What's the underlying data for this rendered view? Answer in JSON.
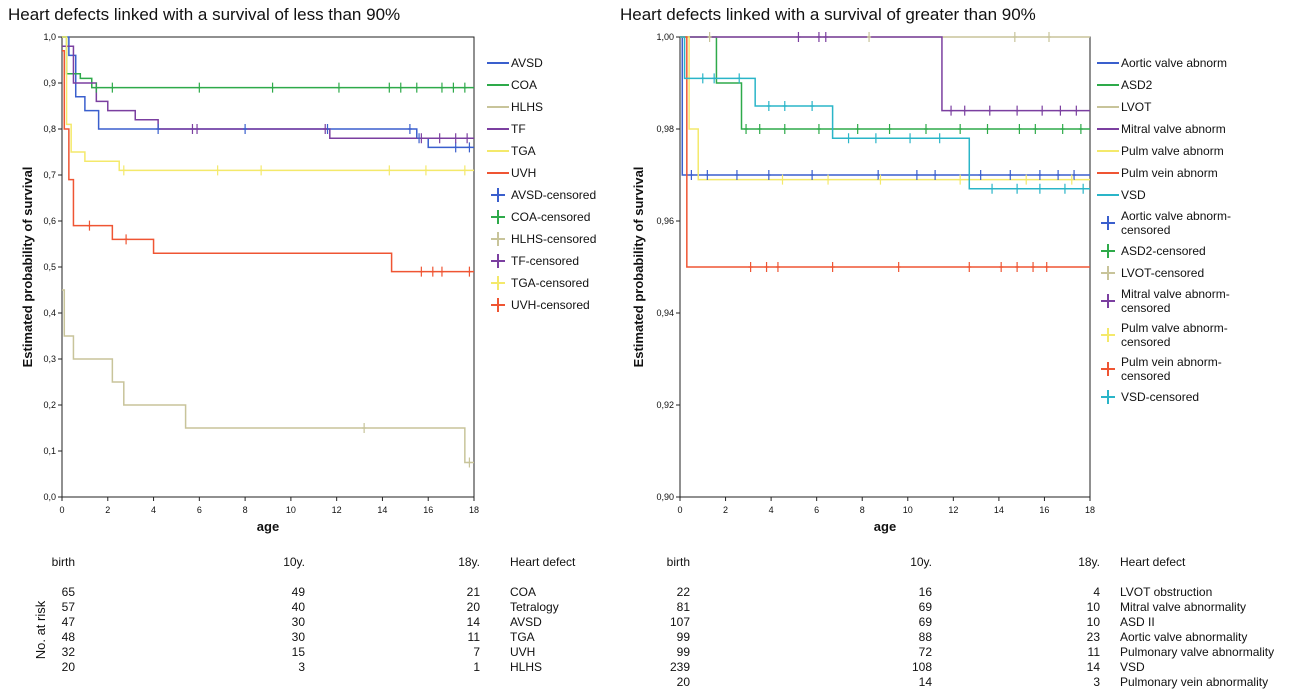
{
  "chart_data": [
    {
      "type": "line",
      "title": "Heart defects linked with a survival of less than 90%",
      "xlabel": "age",
      "ylabel": "Estimated probability of survival",
      "xlim": [
        0,
        18
      ],
      "xticks": [
        0,
        2,
        4,
        6,
        8,
        10,
        12,
        14,
        16,
        18
      ],
      "ylim": [
        0,
        1
      ],
      "yticks": [
        {
          "value": 0,
          "label": "0,0"
        },
        {
          "value": 0.1,
          "label": "0,1"
        },
        {
          "value": 0.2,
          "label": "0,2"
        },
        {
          "value": 0.3,
          "label": "0,3"
        },
        {
          "value": 0.4,
          "label": "0,4"
        },
        {
          "value": 0.5,
          "label": "0,5"
        },
        {
          "value": 0.6,
          "label": "0,6"
        },
        {
          "value": 0.7,
          "label": "0,7"
        },
        {
          "value": 0.8,
          "label": "0,8"
        },
        {
          "value": 0.9,
          "label": "0,9"
        },
        {
          "value": 1,
          "label": "1,0"
        }
      ],
      "series": [
        {
          "name": "AVSD",
          "color": "#3a5fcd",
          "drawstyle": "steps-post",
          "x": [
            0,
            0.3,
            0.6,
            1,
            1.6,
            15.5,
            16,
            18
          ],
          "values": [
            1,
            0.96,
            0.87,
            0.84,
            0.8,
            0.78,
            0.76,
            0.76
          ]
        },
        {
          "name": "COA",
          "color": "#2eaa4a",
          "drawstyle": "steps-post",
          "x": [
            0,
            0.2,
            0.8,
            1.3,
            18
          ],
          "values": [
            1,
            0.92,
            0.91,
            0.89,
            0.89
          ]
        },
        {
          "name": "HLHS",
          "color": "#c8c49a",
          "drawstyle": "steps-post",
          "x": [
            0,
            0.1,
            0.5,
            2.2,
            2.7,
            5.4,
            17.6,
            18
          ],
          "values": [
            0.45,
            0.35,
            0.3,
            0.25,
            0.2,
            0.15,
            0.075,
            0.075
          ]
        },
        {
          "name": "TF",
          "color": "#7b3fa0",
          "drawstyle": "steps-post",
          "x": [
            0,
            0.5,
            1.5,
            2,
            3.2,
            4.2,
            11.7,
            18
          ],
          "values": [
            0.98,
            0.9,
            0.86,
            0.84,
            0.82,
            0.8,
            0.78,
            0.78
          ]
        },
        {
          "name": "TGA",
          "color": "#f4e96b",
          "drawstyle": "steps-post",
          "x": [
            0,
            0.2,
            0.4,
            1,
            2.5,
            18
          ],
          "values": [
            1,
            0.81,
            0.75,
            0.73,
            0.71,
            0.71
          ]
        },
        {
          "name": "UVH",
          "color": "#ef5533",
          "drawstyle": "steps-post",
          "x": [
            0,
            0.1,
            0.3,
            0.5,
            2.2,
            4,
            14.4,
            18
          ],
          "values": [
            0.97,
            0.8,
            0.69,
            0.59,
            0.56,
            0.53,
            0.49,
            0.49
          ]
        },
        {
          "name": "AVSD-censored",
          "color": "#3a5fcd",
          "marker": "+",
          "x": [
            4.2,
            8,
            11.6,
            15.2,
            15.6,
            17.2,
            17.8
          ],
          "values": [
            0.8,
            0.8,
            0.8,
            0.8,
            0.78,
            0.76,
            0.76
          ]
        },
        {
          "name": "COA-censored",
          "color": "#2eaa4a",
          "marker": "+",
          "x": [
            1.5,
            2.2,
            6,
            9.2,
            12.1,
            14.3,
            14.8,
            15.5,
            16.6,
            17.1,
            17.6
          ],
          "values": [
            0.89,
            0.89,
            0.89,
            0.89,
            0.89,
            0.89,
            0.89,
            0.89,
            0.89,
            0.89,
            0.89
          ]
        },
        {
          "name": "HLHS-censored",
          "color": "#c8c49a",
          "marker": "+",
          "x": [
            13.2,
            17.8
          ],
          "values": [
            0.15,
            0.075
          ]
        },
        {
          "name": "TF-censored",
          "color": "#7b3fa0",
          "marker": "+",
          "x": [
            5.7,
            5.9,
            11.5,
            15.7,
            16.5,
            17.2,
            17.7
          ],
          "values": [
            0.8,
            0.8,
            0.8,
            0.78,
            0.78,
            0.78,
            0.78
          ]
        },
        {
          "name": "TGA-censored",
          "color": "#f4e96b",
          "marker": "+",
          "x": [
            2.7,
            6.8,
            8.7,
            14.3,
            15.9,
            17.6
          ],
          "values": [
            0.71,
            0.71,
            0.71,
            0.71,
            0.71,
            0.71
          ]
        },
        {
          "name": "UVH-censored",
          "color": "#ef5533",
          "marker": "+",
          "x": [
            1.2,
            2.8,
            15.7,
            16.2,
            16.6,
            17.8
          ],
          "values": [
            0.59,
            0.56,
            0.49,
            0.49,
            0.49,
            0.49
          ]
        }
      ]
    },
    {
      "type": "line",
      "title": "Heart defects linked with a survival of greater than 90%",
      "xlabel": "age",
      "ylabel": "Estimated probability of survival",
      "xlim": [
        0,
        18
      ],
      "xticks": [
        0,
        2,
        4,
        6,
        8,
        10,
        12,
        14,
        16,
        18
      ],
      "ylim": [
        0.9,
        1
      ],
      "yticks": [
        {
          "value": 0.9,
          "label": "0,90"
        },
        {
          "value": 0.92,
          "label": "0,92"
        },
        {
          "value": 0.94,
          "label": "0,94"
        },
        {
          "value": 0.96,
          "label": "0,96"
        },
        {
          "value": 0.98,
          "label": "0,98"
        },
        {
          "value": 1,
          "label": "1,00"
        }
      ],
      "series": [
        {
          "name": "Aortic valve abnorm",
          "color": "#3a5fcd",
          "drawstyle": "steps-post",
          "x": [
            0,
            0.1,
            18
          ],
          "values": [
            1,
            0.97,
            0.97
          ]
        },
        {
          "name": "ASD2",
          "color": "#2eaa4a",
          "drawstyle": "steps-post",
          "x": [
            0,
            1.6,
            2.7,
            18
          ],
          "values": [
            1,
            0.99,
            0.98,
            0.98
          ]
        },
        {
          "name": "LVOT",
          "color": "#c8c49a",
          "drawstyle": "steps-post",
          "x": [
            0,
            18
          ],
          "values": [
            1,
            1
          ]
        },
        {
          "name": "Mitral valve abnorm",
          "color": "#7b3fa0",
          "drawstyle": "steps-post",
          "x": [
            0,
            11.5,
            18
          ],
          "values": [
            1,
            0.984,
            0.984
          ]
        },
        {
          "name": "Pulm valve abnorm",
          "color": "#f4e96b",
          "drawstyle": "steps-post",
          "x": [
            0,
            0.4,
            0.8,
            18
          ],
          "values": [
            1,
            0.98,
            0.969,
            0.969
          ]
        },
        {
          "name": "Pulm vein abnorm",
          "color": "#ef5533",
          "drawstyle": "steps-post",
          "x": [
            0,
            0.3,
            18
          ],
          "values": [
            1,
            0.95,
            0.95
          ]
        },
        {
          "name": "VSD",
          "color": "#2ab5c8",
          "drawstyle": "steps-post",
          "x": [
            0,
            0.2,
            3.3,
            6.7,
            12.7,
            18
          ],
          "values": [
            1,
            0.991,
            0.985,
            0.978,
            0.967,
            0.967
          ]
        },
        {
          "name": "Aortic valve abnorm-censored",
          "color": "#3a5fcd",
          "marker": "+",
          "x": [
            0.5,
            1.2,
            2.5,
            3.9,
            5.8,
            8.7,
            10.4,
            11.2,
            13.2,
            14.5,
            15.8,
            16.6,
            17.3
          ],
          "values": [
            0.97,
            0.97,
            0.97,
            0.97,
            0.97,
            0.97,
            0.97,
            0.97,
            0.97,
            0.97,
            0.97,
            0.97,
            0.97
          ]
        },
        {
          "name": "ASD2-censored",
          "color": "#2eaa4a",
          "marker": "+",
          "x": [
            2.9,
            3.5,
            4.6,
            6.1,
            7.8,
            9.2,
            10.8,
            12.3,
            13.5,
            14.9,
            15.6,
            16.8,
            17.6
          ],
          "values": [
            0.98,
            0.98,
            0.98,
            0.98,
            0.98,
            0.98,
            0.98,
            0.98,
            0.98,
            0.98,
            0.98,
            0.98,
            0.98
          ]
        },
        {
          "name": "LVOT-censored",
          "color": "#c8c49a",
          "marker": "+",
          "x": [
            1.3,
            8.3,
            14.7,
            16.2
          ],
          "values": [
            1,
            1,
            1,
            1
          ]
        },
        {
          "name": "Mitral valve abnorm-censored",
          "color": "#7b3fa0",
          "marker": "+",
          "x": [
            5.2,
            6.1,
            6.4,
            11.9,
            12.5,
            13.6,
            14.8,
            15.9,
            16.7,
            17.4
          ],
          "values": [
            1,
            1,
            1,
            0.984,
            0.984,
            0.984,
            0.984,
            0.984,
            0.984,
            0.984
          ]
        },
        {
          "name": "Pulm valve abnorm-censored",
          "color": "#f4e96b",
          "marker": "+",
          "x": [
            4.5,
            6.5,
            8.8,
            12.3,
            15.2,
            17.2
          ],
          "values": [
            0.969,
            0.969,
            0.969,
            0.969,
            0.969,
            0.969
          ]
        },
        {
          "name": "Pulm vein abnorm-censored",
          "color": "#ef5533",
          "marker": "+",
          "x": [
            3.1,
            3.8,
            4.3,
            6.7,
            9.6,
            12.7,
            14.1,
            14.8,
            15.5,
            16.1
          ],
          "values": [
            0.95,
            0.95,
            0.95,
            0.95,
            0.95,
            0.95,
            0.95,
            0.95,
            0.95,
            0.95
          ]
        },
        {
          "name": "VSD-censored",
          "color": "#2ab5c8",
          "marker": "+",
          "x": [
            1,
            1.5,
            2.6,
            3.9,
            4.6,
            5.8,
            7.4,
            8.6,
            10.1,
            11.4,
            13.7,
            14.8,
            15.8,
            16.9,
            17.7
          ],
          "values": [
            0.991,
            0.991,
            0.991,
            0.985,
            0.985,
            0.985,
            0.978,
            0.978,
            0.978,
            0.978,
            0.967,
            0.967,
            0.967,
            0.967,
            0.967
          ]
        }
      ]
    }
  ],
  "risk_tables": [
    {
      "row_label": "No. at risk",
      "header": [
        "birth",
        "10y.",
        "18y.",
        "Heart defect"
      ],
      "rows": [
        [
          65,
          49,
          21,
          "COA"
        ],
        [
          57,
          40,
          20,
          "Tetralogy"
        ],
        [
          47,
          30,
          14,
          "AVSD"
        ],
        [
          48,
          30,
          11,
          "TGA"
        ],
        [
          32,
          15,
          7,
          "UVH"
        ],
        [
          20,
          3,
          1,
          "HLHS"
        ]
      ]
    },
    {
      "header": [
        "birth",
        "10y.",
        "18y.",
        "Heart defect"
      ],
      "rows": [
        [
          22,
          16,
          4,
          "LVOT obstruction"
        ],
        [
          81,
          69,
          10,
          "Mitral valve abnormality"
        ],
        [
          107,
          69,
          10,
          "ASD II"
        ],
        [
          99,
          88,
          23,
          "Aortic valve abnormality"
        ],
        [
          99,
          72,
          11,
          "Pulmonary valve abnormality"
        ],
        [
          239,
          108,
          14,
          "VSD"
        ],
        [
          20,
          14,
          3,
          "Pulmonary vein abnormality"
        ]
      ]
    }
  ]
}
